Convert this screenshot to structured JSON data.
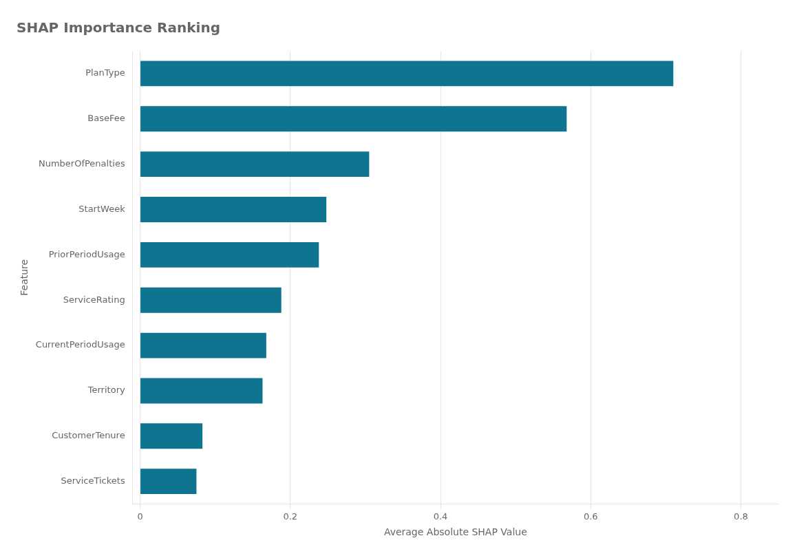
{
  "chart_data": {
    "type": "bar",
    "orientation": "horizontal",
    "title": "SHAP Importance Ranking",
    "categories": [
      "ServiceTickets",
      "CustomerTenure",
      "Territory",
      "CurrentPeriodUsage",
      "ServiceRating",
      "PriorPeriodUsage",
      "StartWeek",
      "NumberOfPenalties",
      "BaseFee",
      "PlanType"
    ],
    "values": [
      0.075,
      0.083,
      0.163,
      0.168,
      0.188,
      0.238,
      0.248,
      0.305,
      0.568,
      0.71
    ],
    "color": "#0e7490",
    "xlabel": "Average Absolute SHAP Value",
    "ylabel": "Feature",
    "xlim": [
      -0.01,
      0.85
    ],
    "xticks": [
      0,
      0.2,
      0.4,
      0.6,
      0.8
    ],
    "grid": true
  }
}
